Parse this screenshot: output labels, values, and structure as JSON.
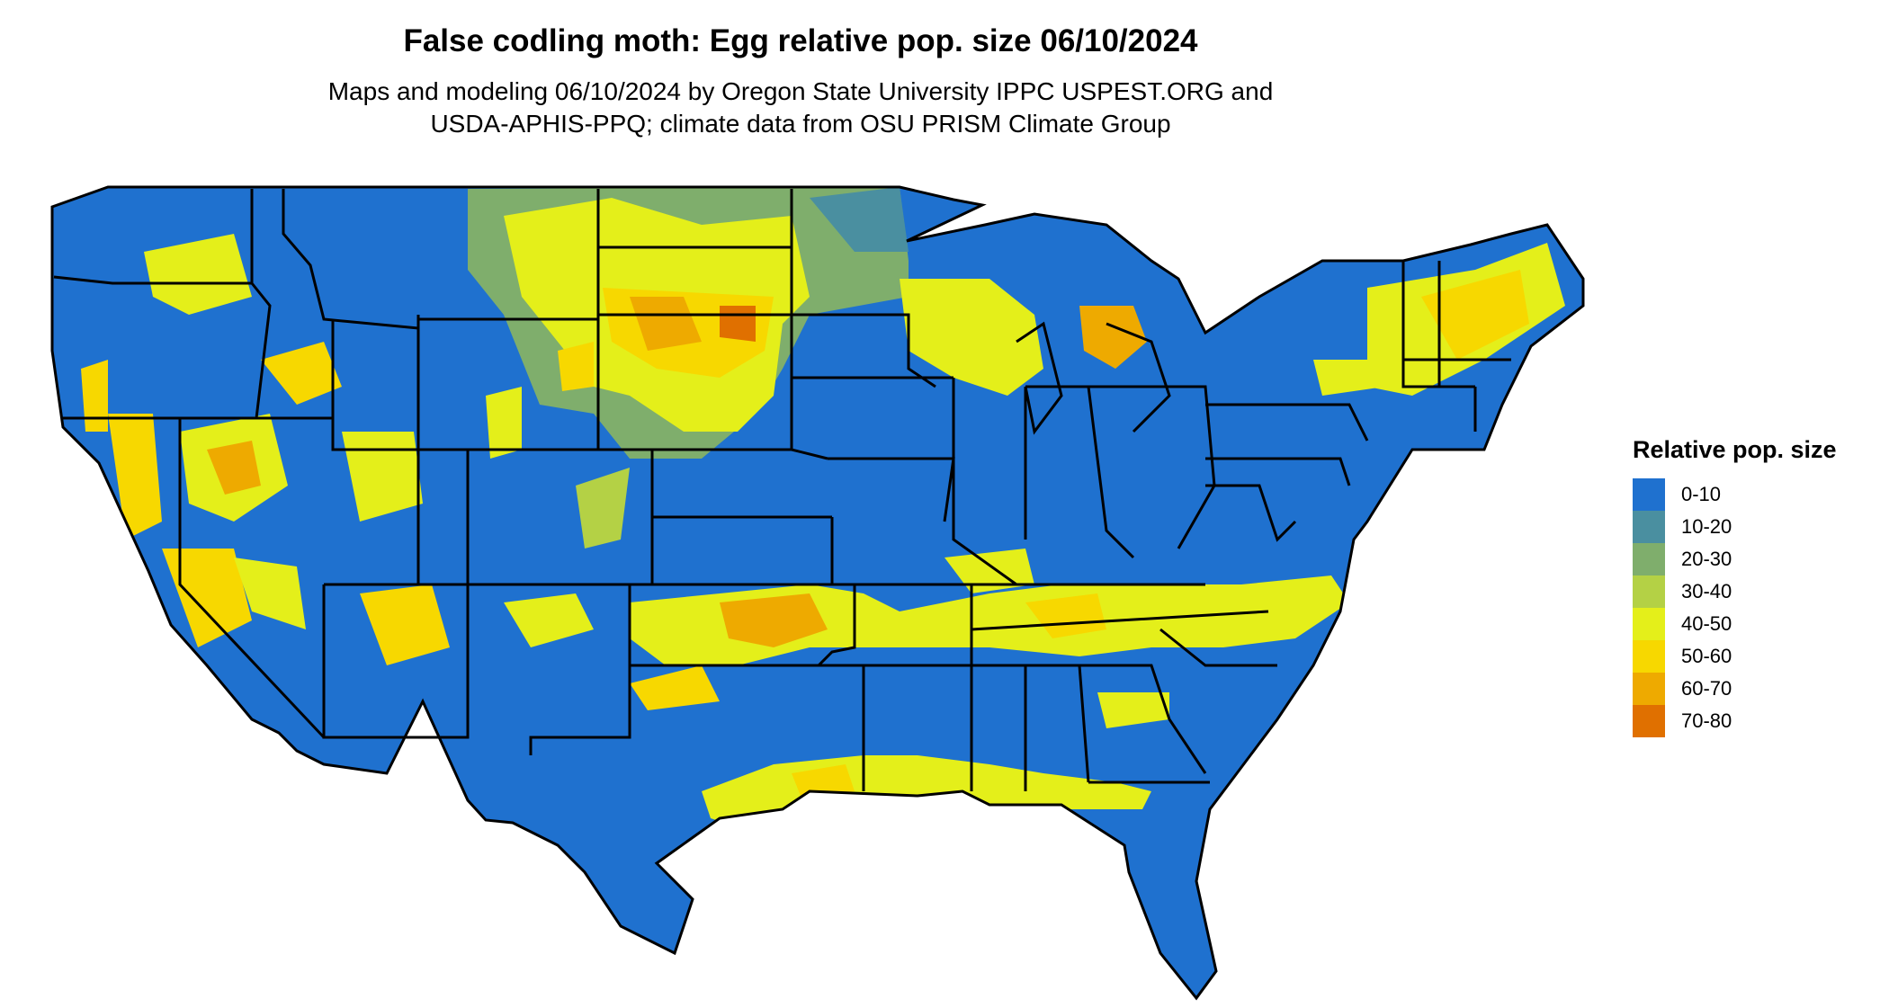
{
  "title": "False codling moth: Egg relative pop. size 06/10/2024",
  "subtitle_line1": "Maps and modeling 06/10/2024 by Oregon State University IPPC USPEST.ORG and",
  "subtitle_line2": "USDA-APHIS-PPQ; climate data from OSU PRISM Climate Group",
  "legend": {
    "title": "Relative pop. size",
    "items": [
      {
        "label": "0-10",
        "color": "#1f71cf"
      },
      {
        "label": "10-20",
        "color": "#4a8fa0"
      },
      {
        "label": "20-30",
        "color": "#7fae6c"
      },
      {
        "label": "30-40",
        "color": "#b4d145"
      },
      {
        "label": "40-50",
        "color": "#e4ef1a"
      },
      {
        "label": "50-60",
        "color": "#f7d800"
      },
      {
        "label": "60-70",
        "color": "#eeaa00"
      },
      {
        "label": "70-80",
        "color": "#e07000"
      }
    ]
  },
  "map": {
    "region": "contiguous-united-states",
    "state_border_color": "#000000",
    "background_value_color": "#1f71cf"
  }
}
